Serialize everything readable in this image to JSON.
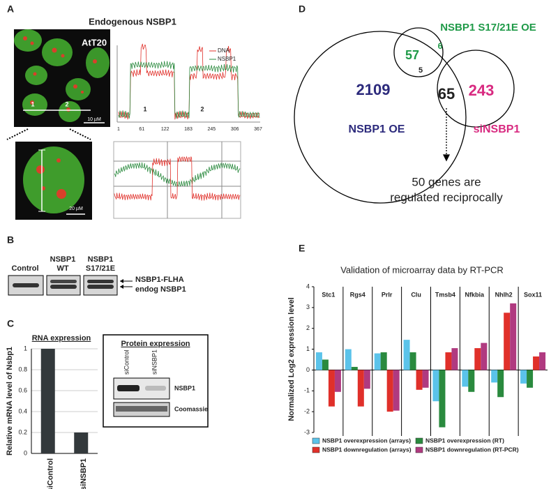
{
  "panel_labels": [
    "A",
    "B",
    "C",
    "D",
    "E"
  ],
  "panel_a": {
    "title": "Endogenous  NSBP1",
    "cell_line": "AtT20",
    "scale_bars": [
      "10 µM",
      "20 µM"
    ],
    "line_regions": [
      "1",
      "2"
    ],
    "profile": {
      "legend": [
        "DNA",
        "NSBP1"
      ],
      "x_tick_labels": [
        "1",
        "61",
        "122",
        "183",
        "245",
        "306",
        "367"
      ],
      "regions": [
        "1",
        "2"
      ]
    }
  },
  "panel_b": {
    "lanes": [
      [
        "Control"
      ],
      [
        "NSBP1",
        "WT"
      ],
      [
        "NSBP1",
        "S17/21E"
      ]
    ],
    "bands": [
      "NSBP1-FLHA",
      "endog NSBP1"
    ]
  },
  "panel_c_protein": {
    "title": "Protein expression",
    "lanes": [
      "siControl",
      "siNSBP1"
    ],
    "rows": [
      "NSBP1",
      "Coomassie"
    ]
  },
  "panel_d": {
    "sets": [
      "NSBP1 OE",
      "NSBP1 S17/21E OE",
      "siNSBP1"
    ],
    "counts": [
      2109,
      57,
      6,
      5,
      65,
      243
    ],
    "note": [
      "50 genes are",
      "regulated reciprocally"
    ]
  },
  "chart_data": [
    {
      "type": "bar",
      "title": "RNA expression",
      "y_label": "Relative mRNA level of Nsbp1",
      "categories": [
        "siControl",
        "siNSBP1"
      ],
      "values": [
        1,
        0.2
      ],
      "color": "#33393c",
      "ylim": [
        0,
        1
      ],
      "yticks": [
        0,
        0.2,
        0.4,
        0.6,
        0.8,
        1
      ],
      "grid": true
    },
    {
      "type": "bar",
      "title": "Validation of microarray data by RT-PCR",
      "y_label": "Normalized Log2 expression level",
      "categories": [
        "Stc1",
        "Rgs4",
        "Prlr",
        "Clu",
        "Tmsb4",
        "Nfkbia",
        "Nhlh2",
        "Sox11"
      ],
      "series": [
        {
          "name": "NSBP1 overexpression (arrays)",
          "color": "#5bc3ea",
          "values": [
            0.85,
            1.0,
            0.8,
            1.45,
            -1.5,
            -0.8,
            -0.6,
            -0.65
          ]
        },
        {
          "name": "NSBP1 overexpression (RT)",
          "color": "#2a8a3e",
          "values": [
            0.5,
            0.15,
            0.85,
            0.85,
            -2.75,
            -1.05,
            -1.3,
            -0.85
          ]
        },
        {
          "name": "NSBP1 downregulation (arrays)",
          "color": "#e0302a",
          "values": [
            -1.75,
            -1.75,
            -2.0,
            -0.95,
            0.85,
            1.05,
            2.75,
            0.65
          ]
        },
        {
          "name": "NSBP1 downregulation (RT-PCR)",
          "color": "#b03a80",
          "values": [
            -1.05,
            -0.9,
            -1.95,
            -0.85,
            1.05,
            1.3,
            3.2,
            0.85
          ]
        }
      ],
      "ylim": [
        -3,
        4
      ],
      "yticks": [
        -3,
        -2,
        -1,
        0,
        1,
        2,
        3,
        4
      ],
      "grid": false
    }
  ]
}
